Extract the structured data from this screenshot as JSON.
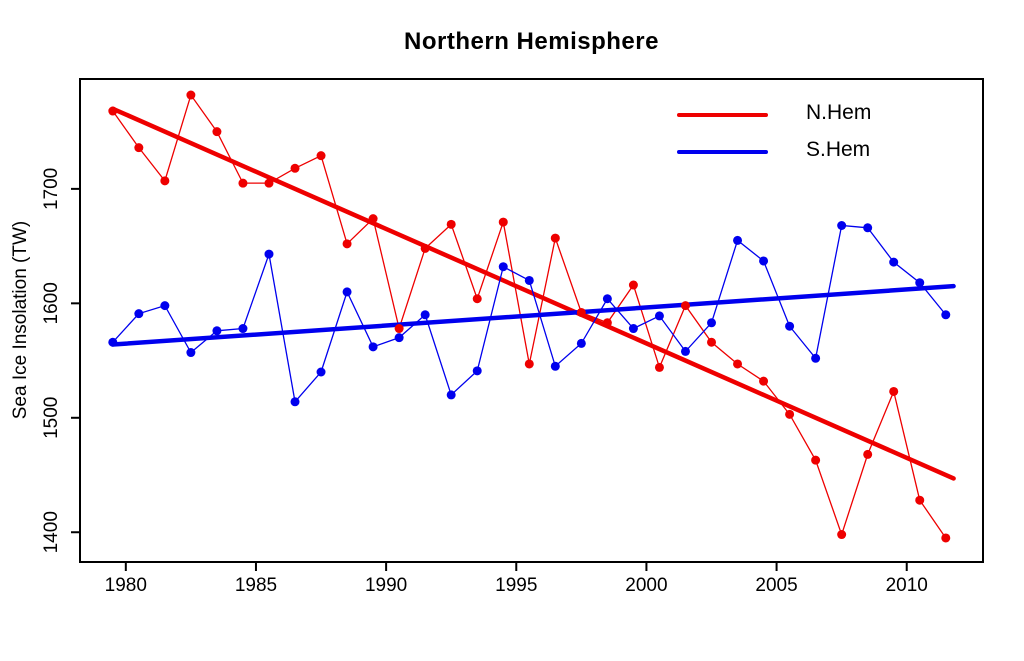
{
  "chart_data": {
    "type": "line",
    "title": "Northern Hemisphere",
    "xlabel": "",
    "ylabel": "Sea Ice Insolation (TW)",
    "x_ticks": [
      1980,
      1985,
      1990,
      1995,
      2000,
      2005,
      2010
    ],
    "y_ticks": [
      1400,
      1500,
      1600,
      1700
    ],
    "xlim": [
      1978.24,
      2012.93
    ],
    "ylim": [
      1374,
      1796
    ],
    "grid": false,
    "legend_position": "top-right-inside",
    "x": [
      1979.5,
      1980.5,
      1981.5,
      1982.5,
      1983.5,
      1984.5,
      1985.5,
      1986.5,
      1987.5,
      1988.5,
      1989.5,
      1990.5,
      1991.5,
      1992.5,
      1993.5,
      1994.5,
      1995.5,
      1996.5,
      1997.5,
      1998.5,
      1999.5,
      2000.5,
      2001.5,
      2002.5,
      2003.5,
      2004.5,
      2005.5,
      2006.5,
      2007.5,
      2008.5,
      2009.5,
      2010.5,
      2011.5
    ],
    "series": [
      {
        "name": "N.Hem",
        "color": "#ee0000",
        "values": [
          1768,
          1736,
          1707,
          1782,
          1750,
          1705,
          1705,
          1718,
          1729,
          1652,
          1674,
          1578,
          1648,
          1669,
          1604,
          1671,
          1547,
          1657,
          1592,
          1583,
          1616,
          1544,
          1598,
          1566,
          1547,
          1532,
          1503,
          1463,
          1398,
          1468,
          1523,
          1428,
          1395
        ],
        "trend": {
          "x": [
            1979.5,
            2011.8
          ],
          "y": [
            1770,
            1447
          ]
        }
      },
      {
        "name": "S.Hem",
        "color": "#0000ee",
        "values": [
          1566,
          1591,
          1598,
          1557,
          1576,
          1578,
          1643,
          1514,
          1540,
          1610,
          1562,
          1570,
          1590,
          1520,
          1541,
          1632,
          1620,
          1545,
          1565,
          1604,
          1578,
          1589,
          1558,
          1583,
          1655,
          1637,
          1580,
          1552,
          1668,
          1666,
          1636,
          1618,
          1590
        ],
        "trend": {
          "x": [
            1979.5,
            2011.8
          ],
          "y": [
            1564,
            1615
          ]
        }
      }
    ]
  }
}
